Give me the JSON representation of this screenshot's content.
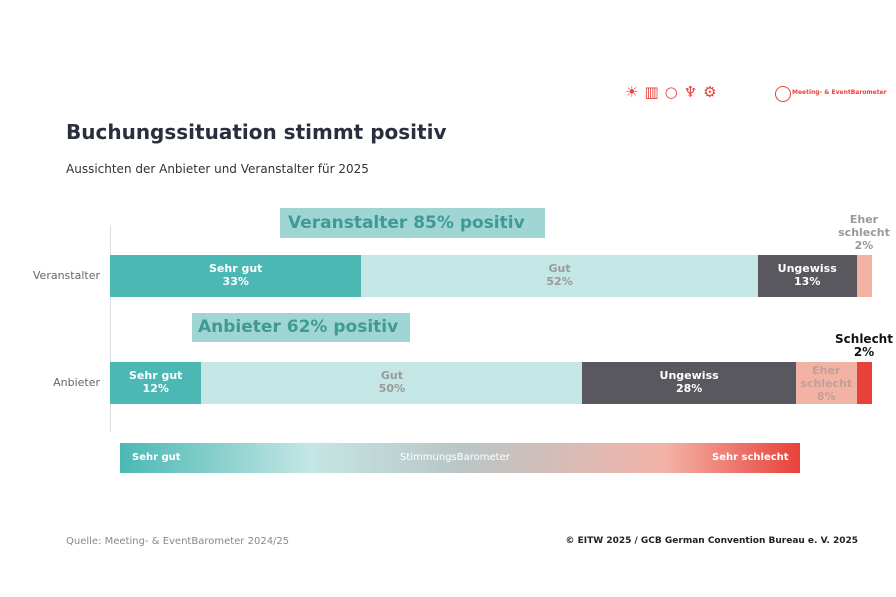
{
  "chart_data": {
    "type": "stacked_barh",
    "title": "Buchungssituation stimmt positiv",
    "subtitle": "Aussichten der Anbieter und Veranstalter für 2025",
    "categories": [
      "Veranstalter",
      "Anbieter"
    ],
    "xlim": [
      0,
      100
    ],
    "series": [
      {
        "name": "Sehr gut",
        "color": "#4bb8b4",
        "values": [
          33,
          12
        ],
        "value_labels": [
          "33%",
          "12%"
        ]
      },
      {
        "name": "Gut",
        "color": "#c4e6e4",
        "values": [
          52,
          50
        ],
        "value_labels": [
          "52%",
          "50%"
        ]
      },
      {
        "name": "Ungewiss",
        "color": "#58585e",
        "values": [
          13,
          28
        ],
        "value_labels": [
          "13%",
          "28%"
        ]
      },
      {
        "name": "Eher schlecht",
        "color": "#f3b3a4",
        "values": [
          2,
          8
        ],
        "value_labels": [
          "2%",
          "8%"
        ]
      },
      {
        "name": "Schlecht",
        "color": "#e8413a",
        "values": [
          null,
          2
        ],
        "value_labels": [
          null,
          "2%"
        ]
      }
    ],
    "annotations": [
      "Veranstalter 85% positiv",
      "Anbieter 62% positiv"
    ],
    "legend": {
      "left": "Sehr gut",
      "center": "StimmungsBarometer",
      "right": "Sehr schlecht"
    },
    "logo": "Meeting- & EventBarometer",
    "source": "Quelle: Meeting- & EventBarometer 2024/25",
    "copyright": "© EITW 2025 / GCB German Convention Bureau e. V. 2025"
  }
}
